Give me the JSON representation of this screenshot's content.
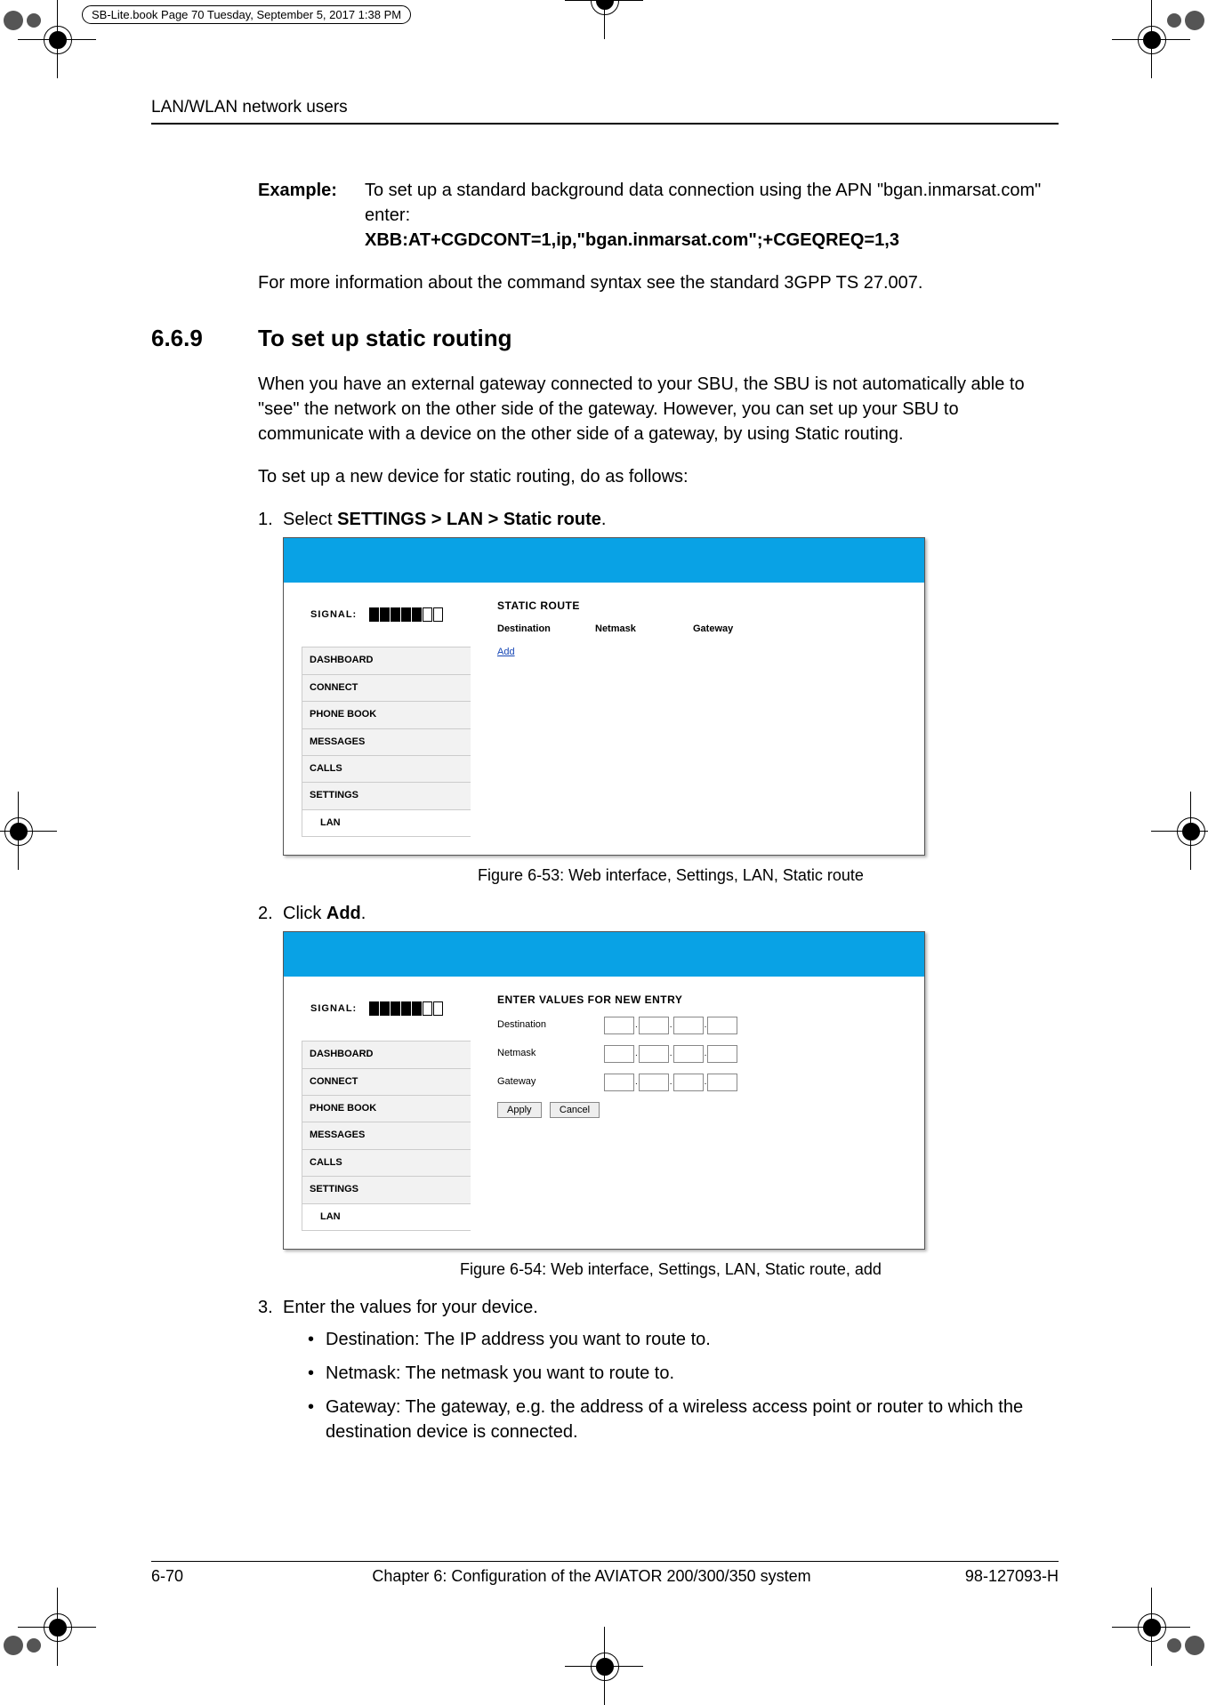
{
  "print_header": "SB-Lite.book  Page 70  Tuesday, September 5, 2017  1:38 PM",
  "running_head": "LAN/WLAN network users",
  "example_label": "Example:",
  "example_text1": "To set up a standard background data connection using the APN \"bgan.inmarsat.com\" enter:",
  "example_cmd": "XBB:AT+CGDCONT=1,ip,\"bgan.inmarsat.com\";+CGEQREQ=1,3",
  "para_more_info": "For more information about the command syntax see the standard 3GPP TS 27.007.",
  "section_num": "6.6.9",
  "section_title": "To set up static routing",
  "para_intro": "When you have an external gateway connected to your SBU, the SBU is not automatically able to \"see\" the network on the other side of the gateway. However, you can set up your SBU to communicate with a device on the other side of a gateway, by using Static routing.",
  "para_intro2": "To set up a new device for static routing, do as follows:",
  "step1_pre": "Select ",
  "step1_bold": "SETTINGS > LAN > Static route",
  "step1_post": ".",
  "step2_pre": "Click ",
  "step2_bold": "Add",
  "step2_post": ".",
  "step3": "Enter the values for your device.",
  "bullet1": "Destination: The IP address you want to route to.",
  "bullet2": "Netmask: The netmask you want to route to.",
  "bullet3": "Gateway: The gateway, e.g. the address of a wireless access point or router to which the destination device is connected.",
  "fig1_caption": "Figure 6-53: Web interface, Settings, LAN, Static route",
  "fig2_caption": "Figure 6-54: Web interface, Settings, LAN, Static route, add",
  "sc": {
    "signal_label": "SIGNAL:",
    "menu": [
      "DASHBOARD",
      "CONNECT",
      "PHONE BOOK",
      "MESSAGES",
      "CALLS",
      "SETTINGS",
      "LAN"
    ],
    "panel1_title": "STATIC ROUTE",
    "col1": "Destination",
    "col2": "Netmask",
    "col3": "Gateway",
    "add_link": "Add",
    "panel2_title": "ENTER VALUES FOR NEW ENTRY",
    "f1": "Destination",
    "f2": "Netmask",
    "f3": "Gateway",
    "btn_apply": "Apply",
    "btn_cancel": "Cancel"
  },
  "footer": {
    "page": "6-70",
    "chapter": "Chapter 6:  Configuration of the AVIATOR 200/300/350 system",
    "docnum": "98-127093-H"
  },
  "colors": {
    "blue_bar": "#09a2e5",
    "link": "#1646b5"
  }
}
